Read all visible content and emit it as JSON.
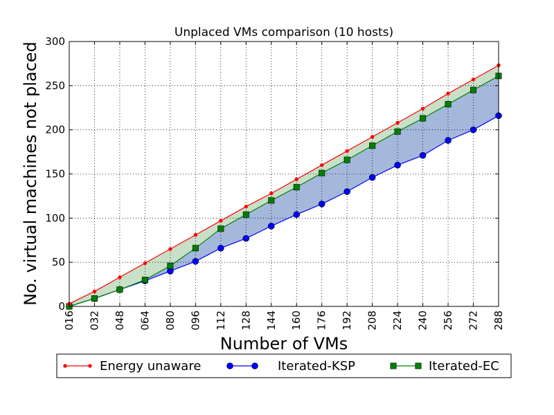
{
  "chart_data": {
    "type": "line",
    "title": "Unplaced VMs comparison (10 hosts)",
    "xlabel": "Number of VMs",
    "ylabel": "No. virtual machines not placed",
    "x": [
      "016",
      "032",
      "048",
      "064",
      "080",
      "096",
      "112",
      "128",
      "144",
      "160",
      "176",
      "192",
      "208",
      "224",
      "240",
      "256",
      "272",
      "288"
    ],
    "xlim": [
      16,
      288
    ],
    "ylim": [
      0,
      300
    ],
    "yticks": [
      0,
      50,
      100,
      150,
      200,
      250,
      300
    ],
    "grid": true,
    "legend_position": "bottom",
    "series": [
      {
        "name": "Energy unaware",
        "color": "#ff0000",
        "marker": "dot",
        "values": [
          3,
          17,
          33,
          49,
          65,
          81,
          97,
          113,
          128,
          144,
          160,
          176,
          192,
          208,
          224,
          241,
          257,
          273
        ]
      },
      {
        "name": "Iterated-KSP",
        "color": "#0000ff",
        "marker": "circle",
        "values": [
          0,
          9,
          19,
          29,
          40,
          51,
          66,
          77,
          91,
          104,
          116,
          130,
          146,
          160,
          171,
          188,
          200,
          216
        ]
      },
      {
        "name": "Iterated-EC",
        "color": "#008000",
        "marker": "square",
        "values": [
          0,
          9,
          19,
          30,
          46,
          66,
          88,
          104,
          120,
          135,
          151,
          166,
          182,
          198,
          213,
          229,
          245,
          261
        ]
      }
    ],
    "fills": [
      {
        "between": [
          "Energy unaware",
          "Iterated-EC"
        ],
        "color": "#c8dfc8"
      },
      {
        "between": [
          "Iterated-EC",
          "Iterated-KSP"
        ],
        "color": "#a4b8dc"
      }
    ]
  }
}
